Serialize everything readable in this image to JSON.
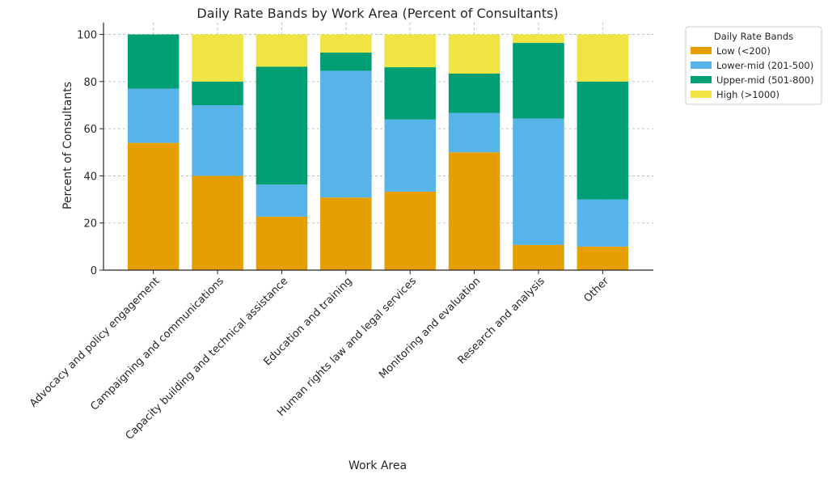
{
  "chart_data": {
    "type": "bar",
    "stacked": true,
    "title": "Daily Rate Bands by Work Area (Percent of Consultants)",
    "xlabel": "Work Area",
    "ylabel": "Percent of Consultants",
    "ylim": [
      0,
      105
    ],
    "yticks": [
      0,
      20,
      40,
      60,
      80,
      100
    ],
    "grid": true,
    "legend_title": "Daily Rate Bands",
    "legend_position": "outside top-right",
    "categories": [
      "Advocacy and policy engagement",
      "Campaigning and communications",
      "Capacity building and technical assistance",
      "Education and training",
      "Human rights law and legal services",
      "Monitoring and evaluation",
      "Research and analysis",
      "Other"
    ],
    "series": [
      {
        "name": "Low (<200)",
        "color": "#E69F00",
        "values": [
          54,
          40,
          22.7,
          30.8,
          33.3,
          50,
          10.7,
          10
        ]
      },
      {
        "name": "Lower-mid (201-500)",
        "color": "#56B4E9",
        "values": [
          23,
          30,
          13.6,
          53.8,
          30.6,
          16.7,
          53.6,
          20
        ]
      },
      {
        "name": "Upper-mid (501-800)",
        "color": "#009E73",
        "values": [
          23,
          10,
          50,
          7.7,
          22.2,
          16.7,
          32.1,
          50
        ]
      },
      {
        "name": "High (>1000)",
        "color": "#F0E442",
        "values": [
          0,
          20,
          13.7,
          7.7,
          13.9,
          16.6,
          3.6,
          20
        ]
      }
    ]
  }
}
